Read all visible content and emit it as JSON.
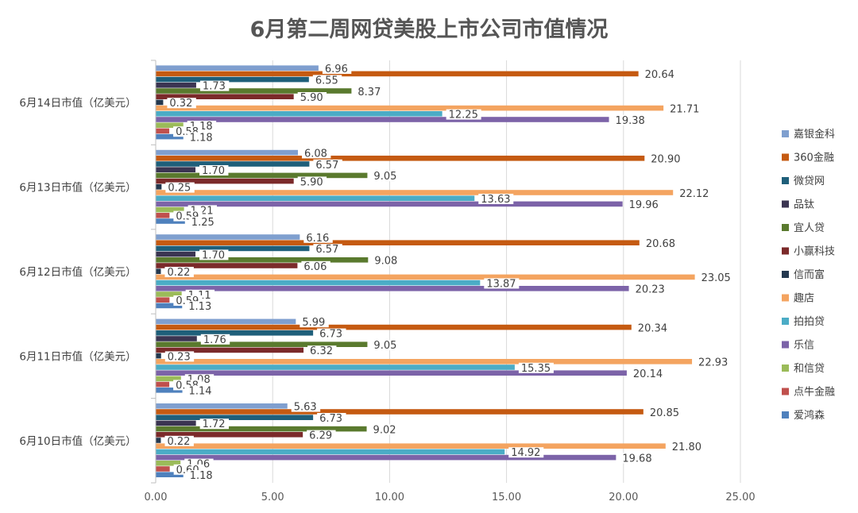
{
  "chart_data": {
    "type": "bar",
    "orientation": "horizontal",
    "title": "6月第二周网贷美股上市公司市值情况",
    "categories": [
      "6月14日市值（亿美元）",
      "6月13日市值（亿美元）",
      "6月12日市值（亿美元）",
      "6月11日市值（亿美元）",
      "6月10日市值（亿美元）"
    ],
    "series": [
      {
        "name": "嘉银金科",
        "color": "#7f9fcf",
        "values": [
          6.96,
          6.08,
          6.16,
          5.99,
          5.63
        ]
      },
      {
        "name": "360金融",
        "color": "#c55a11",
        "values": [
          20.64,
          20.9,
          20.68,
          20.34,
          20.85
        ]
      },
      {
        "name": "微贷网",
        "color": "#1f5f7a",
        "values": [
          6.55,
          6.57,
          6.57,
          6.73,
          6.73
        ]
      },
      {
        "name": "品钛",
        "color": "#3b3552",
        "values": [
          1.73,
          1.7,
          1.7,
          1.76,
          1.72
        ]
      },
      {
        "name": "宜人贷",
        "color": "#5a7a2e",
        "values": [
          8.37,
          9.05,
          9.08,
          9.05,
          9.02
        ]
      },
      {
        "name": "小赢科技",
        "color": "#7b2a2a",
        "values": [
          5.9,
          5.9,
          6.06,
          6.32,
          6.29
        ]
      },
      {
        "name": "信而富",
        "color": "#24384f",
        "values": [
          0.32,
          0.25,
          0.22,
          0.23,
          0.22
        ]
      },
      {
        "name": "趣店",
        "color": "#f4a460",
        "values": [
          21.71,
          22.12,
          23.05,
          22.93,
          21.8
        ]
      },
      {
        "name": "拍拍贷",
        "color": "#4bacc6",
        "values": [
          12.25,
          13.63,
          13.87,
          15.35,
          14.92
        ]
      },
      {
        "name": "乐信",
        "color": "#7c63a8",
        "values": [
          19.38,
          19.96,
          20.23,
          20.14,
          19.68
        ]
      },
      {
        "name": "和信贷",
        "color": "#9bbb59",
        "values": [
          1.18,
          1.21,
          1.11,
          1.08,
          1.06
        ]
      },
      {
        "name": "点牛金融",
        "color": "#c0504d",
        "values": [
          0.58,
          0.59,
          0.59,
          0.58,
          0.6
        ]
      },
      {
        "name": "爱鸿森",
        "color": "#4f81bd",
        "values": [
          1.18,
          1.25,
          1.13,
          1.14,
          1.18
        ]
      }
    ],
    "xlim": [
      0,
      25
    ],
    "xticks": [
      "0.00",
      "5.00",
      "10.00",
      "15.00",
      "20.00",
      "25.00"
    ],
    "xlabel": "",
    "ylabel": "",
    "grid": true,
    "legend_position": "right"
  }
}
